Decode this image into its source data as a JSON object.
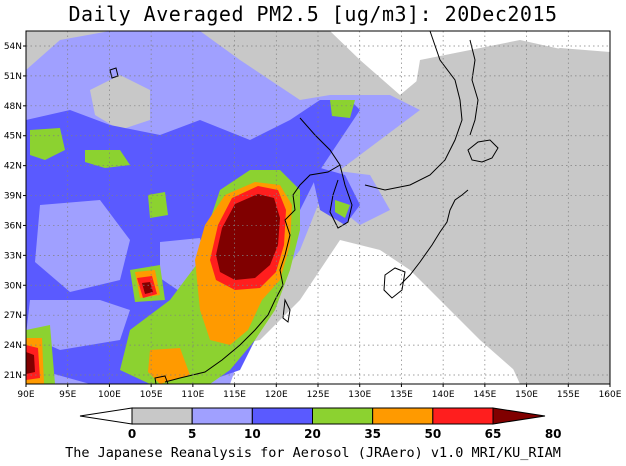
{
  "title": "Daily Averaged PM2.5 [ug/m3]: 20Dec2015",
  "footer": "The Japanese Reanalysis for Aerosol (JRAero) v1.0 MRI/KU_RIAM",
  "map": {
    "lon_labels": [
      "90E",
      "95E",
      "100E",
      "105E",
      "110E",
      "115E",
      "120E",
      "125E",
      "130E",
      "135E",
      "140E",
      "145E",
      "150E",
      "155E",
      "160E"
    ],
    "lat_labels": [
      "54N",
      "51N",
      "48N",
      "45N",
      "42N",
      "39N",
      "36N",
      "33N",
      "30N",
      "27N",
      "24N",
      "21N"
    ]
  },
  "colorbar": {
    "labels": [
      "0",
      "5",
      "10",
      "20",
      "35",
      "50",
      "65",
      "80"
    ],
    "colors": {
      "c0": "#ffffff",
      "c5": "#c8c8c8",
      "c10": "#a0a0ff",
      "c20": "#5a5aff",
      "c35": "#8cd230",
      "c50": "#ff9a00",
      "c65": "#ff1e1e",
      "c80": "#800000"
    }
  }
}
